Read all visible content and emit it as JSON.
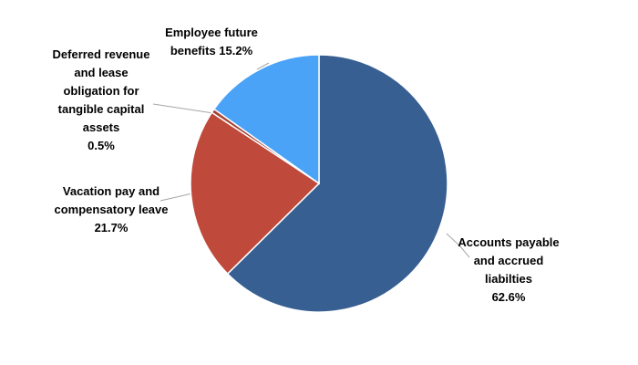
{
  "chart_data": {
    "type": "pie",
    "categories": [
      "Accounts payable and accrued liabilties",
      "Vacation pay and compensatory leave",
      "Deferred revenue and lease obligation for tangible capital assets",
      "Employee future benefits"
    ],
    "values": [
      62.6,
      21.7,
      0.5,
      15.2
    ],
    "value_labels": [
      "62.6%",
      "21.7%",
      "0.5%",
      "15.2%"
    ],
    "colors": [
      "#375f92",
      "#bf4a3b",
      "#a5402f",
      "#4aa3f7"
    ]
  }
}
